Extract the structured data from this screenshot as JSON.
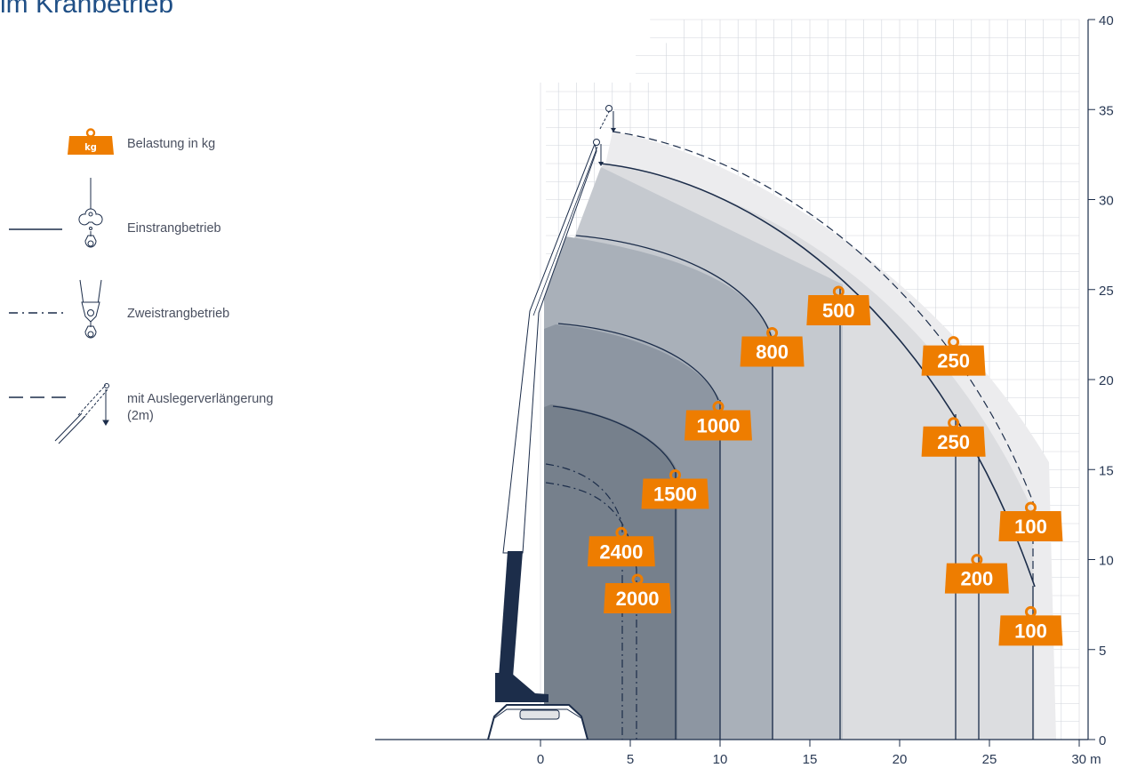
{
  "page": {
    "title": "im Kranbetrieb"
  },
  "legend": {
    "load_icon_label": "kg",
    "load_text": "Belastung in kg",
    "single_line_text": "Einstrangbetrieb",
    "double_line_text": "Zweistrangbetrieb",
    "extension_text_line1": "mit Auslegerverlängerung",
    "extension_text_line2": "(2m)"
  },
  "colors": {
    "accent_orange": "#ee7d00",
    "navy": "#1c2d4a",
    "grid": "#d2d6dc"
  },
  "chart_data": {
    "type": "load-chart",
    "title": "",
    "xlabel": "m",
    "ylabel": "",
    "xlim": [
      0,
      30
    ],
    "ylim": [
      0,
      40
    ],
    "x_ticks": [
      0,
      5,
      10,
      15,
      20,
      25,
      30
    ],
    "x_tick_labels": [
      "0",
      "5",
      "10",
      "15",
      "20",
      "25",
      "30 m"
    ],
    "y_ticks": [
      0,
      5,
      10,
      15,
      20,
      25,
      30,
      35,
      40
    ],
    "grid": true,
    "load_tags": [
      {
        "label": "500",
        "x": 16.6,
        "y": 24.2,
        "mode": "single"
      },
      {
        "label": "800",
        "x": 12.9,
        "y": 21.9,
        "mode": "single"
      },
      {
        "label": "1000",
        "x": 9.9,
        "y": 17.8,
        "mode": "single"
      },
      {
        "label": "1500",
        "x": 7.5,
        "y": 14.0,
        "mode": "single"
      },
      {
        "label": "2400",
        "x": 4.5,
        "y": 10.8,
        "mode": "double"
      },
      {
        "label": "2000",
        "x": 5.4,
        "y": 8.2,
        "mode": "double"
      },
      {
        "label": "250",
        "x": 23.0,
        "y": 21.4,
        "mode": "extension"
      },
      {
        "label": "250",
        "x": 23.0,
        "y": 16.9,
        "mode": "single"
      },
      {
        "label": "200",
        "x": 24.3,
        "y": 9.3,
        "mode": "single"
      },
      {
        "label": "100",
        "x": 27.3,
        "y": 12.2,
        "mode": "extension"
      },
      {
        "label": "100",
        "x": 27.3,
        "y": 6.4,
        "mode": "single"
      }
    ]
  }
}
